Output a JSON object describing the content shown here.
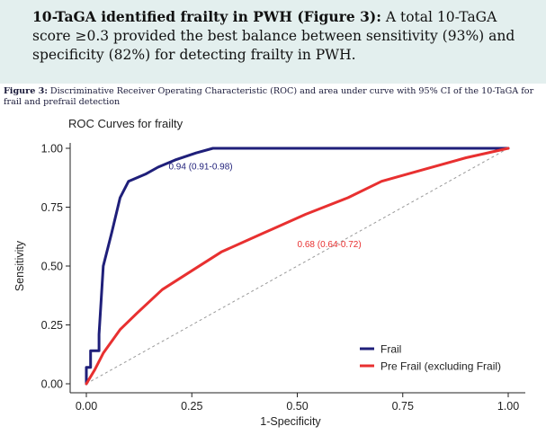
{
  "summary": {
    "lead": "10-TaGA identified frailty in PWH (Figure 3):",
    "text": " A total 10-TaGA score ≥0.3 provided the best balance between sensitivity (93%) and specificity (82%) for detecting frailty in PWH."
  },
  "caption": {
    "label": "Figure 3:",
    "text": " Discriminative Receiver Operating Characteristic (ROC) and area under curve with 95% CI of the 10-TaGA for frail and prefrail detection"
  },
  "chart_data": {
    "type": "line",
    "title": "ROC Curves for frailty",
    "xlabel": "1-Specificity",
    "ylabel": "Sensitivity",
    "xlim": [
      0,
      1
    ],
    "ylim": [
      0,
      1
    ],
    "xticks": [
      "0.00",
      "0.25",
      "0.50",
      "0.75",
      "1.00"
    ],
    "yticks": [
      "0.00",
      "0.25",
      "0.50",
      "0.75",
      "1.00"
    ],
    "grid": false,
    "legend_position": "bottom-right",
    "reference_line": {
      "x": [
        0,
        1
      ],
      "y": [
        0,
        1
      ],
      "color": "#999999",
      "style": "dashed"
    },
    "series": [
      {
        "name": "Frail",
        "color": "#1f1f7a",
        "x": [
          0,
          0,
          0.01,
          0.01,
          0.03,
          0.03,
          0.04,
          0.06,
          0.08,
          0.1,
          0.14,
          0.17,
          0.21,
          0.26,
          0.3,
          1.0
        ],
        "y": [
          0,
          0.07,
          0.07,
          0.14,
          0.14,
          0.21,
          0.5,
          0.64,
          0.79,
          0.86,
          0.89,
          0.92,
          0.95,
          0.98,
          1.0,
          1.0
        ],
        "annotation": {
          "text": "0.94 (0.91-0.98)",
          "x": 0.195,
          "y": 0.91
        }
      },
      {
        "name": "Pre Frail (excluding Frail)",
        "color": "#e83030",
        "x": [
          0,
          0.02,
          0.04,
          0.08,
          0.12,
          0.18,
          0.25,
          0.32,
          0.42,
          0.52,
          0.62,
          0.7,
          0.8,
          0.9,
          1.0
        ],
        "y": [
          0,
          0.06,
          0.13,
          0.23,
          0.3,
          0.4,
          0.48,
          0.56,
          0.64,
          0.72,
          0.79,
          0.86,
          0.91,
          0.96,
          1.0
        ],
        "annotation": {
          "text": "0.68 (0.64-0.72)",
          "x": 0.5,
          "y": 0.58
        }
      }
    ]
  }
}
